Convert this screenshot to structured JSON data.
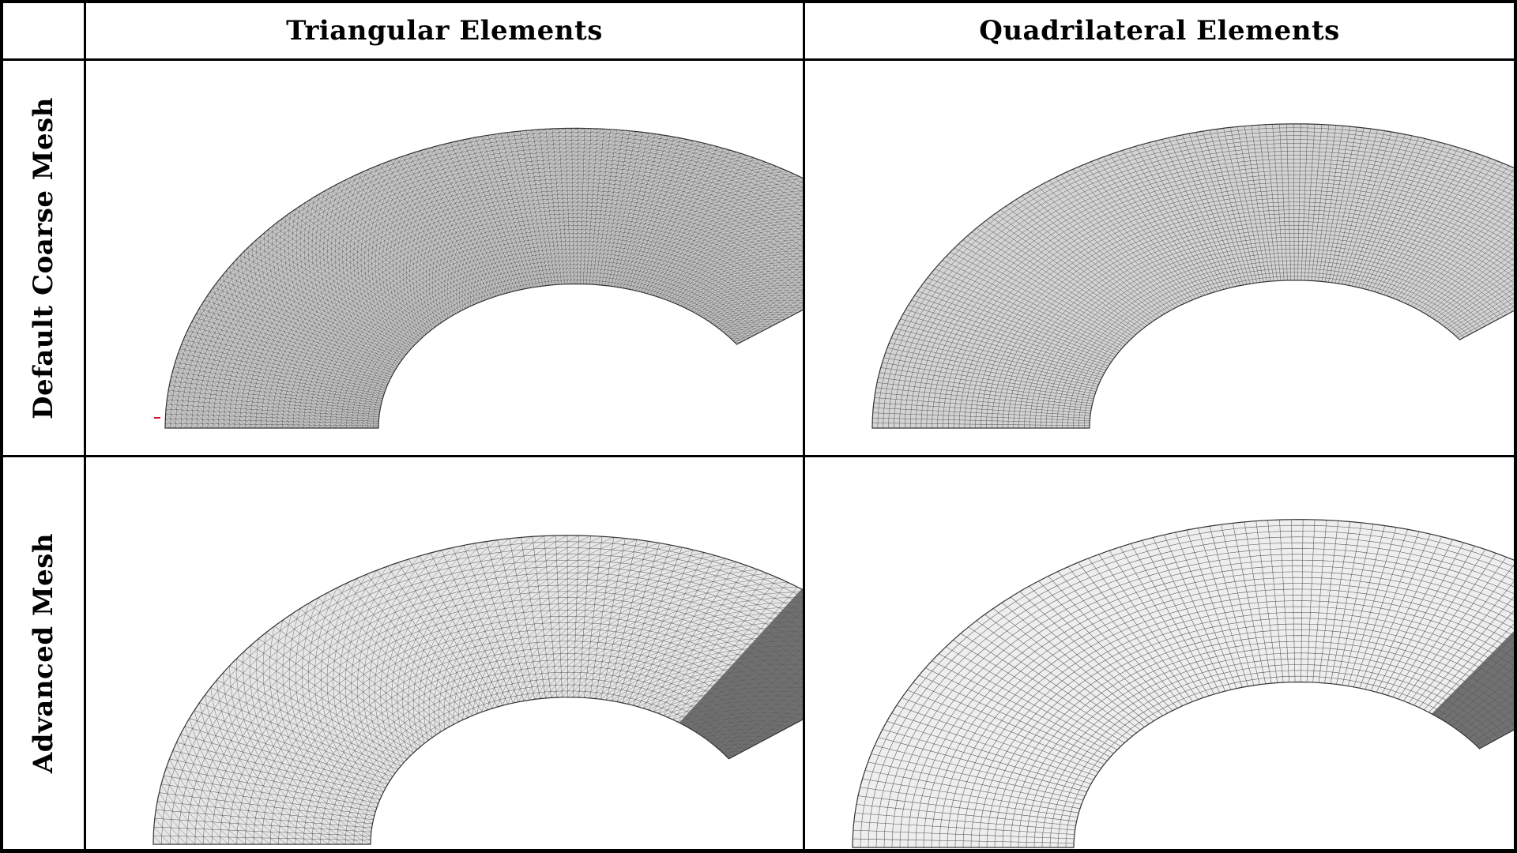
{
  "table": {
    "columns": [
      "Triangular Elements",
      "Quadrilateral Elements"
    ],
    "rows": [
      "Default Coarse Mesh",
      "Advanced Mesh"
    ]
  },
  "cells": [
    {
      "row": "Default Coarse Mesh",
      "column": "Triangular Elements",
      "element_type": "triangular",
      "mesh_style": "default-coarse",
      "fill_color": "#c8c8c8"
    },
    {
      "row": "Default Coarse Mesh",
      "column": "Quadrilateral Elements",
      "element_type": "quadrilateral",
      "mesh_style": "default-coarse",
      "fill_color": "#d4d4d4"
    },
    {
      "row": "Advanced Mesh",
      "column": "Triangular Elements",
      "element_type": "triangular",
      "mesh_style": "advanced-graded",
      "fill_color": "#e6e6e6"
    },
    {
      "row": "Advanced Mesh",
      "column": "Quadrilateral Elements",
      "element_type": "quadrilateral",
      "mesh_style": "advanced-graded",
      "fill_color": "#eeeeee"
    }
  ],
  "colors": {
    "grid_line": "#000000",
    "mesh_line": "#555555",
    "dense_zone": "#5a5a5a",
    "marker": "#d01030"
  }
}
